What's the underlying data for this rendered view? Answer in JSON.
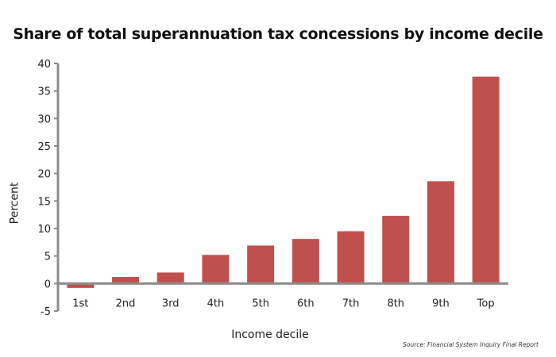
{
  "chart_data": {
    "type": "bar",
    "title": "Share of total superannuation tax concessions by income decile",
    "xlabel": "Income decile",
    "ylabel": "Percent",
    "categories": [
      "1st",
      "2nd",
      "3rd",
      "4th",
      "5th",
      "6th",
      "7th",
      "8th",
      "9th",
      "Top"
    ],
    "values": [
      -0.8,
      1.2,
      2.0,
      5.2,
      6.9,
      8.1,
      9.5,
      12.3,
      18.6,
      37.6
    ],
    "ylim": [
      -5,
      40
    ],
    "yticks": [
      "40",
      "35",
      "30",
      "25",
      "20",
      "15",
      "10",
      "5",
      "0",
      "-5"
    ],
    "grid": false,
    "bar_color": "#c0504d",
    "axis_color": "#8c8c8c",
    "source": "Source: Financial System Inquiry Final Report"
  }
}
